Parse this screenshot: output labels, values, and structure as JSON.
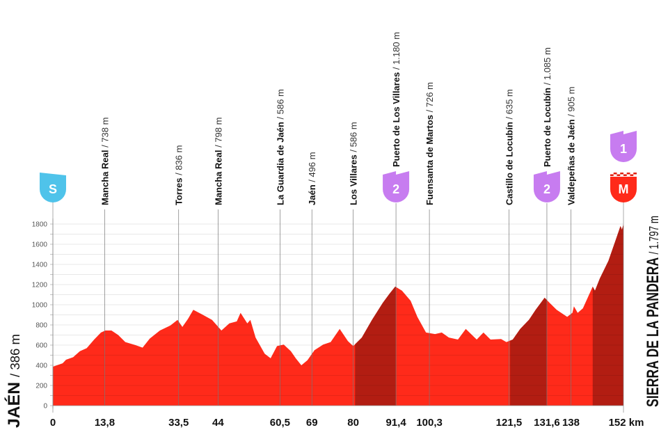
{
  "chart_data": {
    "type": "area",
    "title": "",
    "xlabel": "",
    "ylabel": "",
    "x_unit": "km",
    "xlim": [
      0,
      152
    ],
    "ylim": [
      0,
      1800
    ],
    "y_ticks": [
      0,
      200,
      400,
      600,
      800,
      1000,
      1200,
      1400,
      1600,
      1800
    ],
    "grid": "horizontal every 100 m",
    "colors": {
      "profile": "#ff2a1a",
      "climb": "#b21d12",
      "badge_start": "#4fc3ea",
      "badge_climb": "#c77cf0",
      "badge_finish": "#ff2a1a"
    },
    "profile": [
      [
        0,
        386
      ],
      [
        2.6,
        420
      ],
      [
        3.5,
        455
      ],
      [
        5.4,
        480
      ],
      [
        7.2,
        540
      ],
      [
        9,
        570
      ],
      [
        11,
        655
      ],
      [
        12.8,
        725
      ],
      [
        14,
        745
      ],
      [
        15.6,
        745
      ],
      [
        17.4,
        700
      ],
      [
        19.3,
        630
      ],
      [
        22,
        600
      ],
      [
        23.9,
        575
      ],
      [
        25.8,
        665
      ],
      [
        28.5,
        745
      ],
      [
        31.3,
        795
      ],
      [
        33.2,
        850
      ],
      [
        34.5,
        780
      ],
      [
        36,
        860
      ],
      [
        37.4,
        950
      ],
      [
        39.7,
        905
      ],
      [
        42.4,
        850
      ],
      [
        44.9,
        745
      ],
      [
        47,
        815
      ],
      [
        49,
        835
      ],
      [
        50,
        920
      ],
      [
        51.8,
        815
      ],
      [
        52.6,
        850
      ],
      [
        54,
        675
      ],
      [
        56.4,
        515
      ],
      [
        58,
        470
      ],
      [
        59.7,
        590
      ],
      [
        61.5,
        605
      ],
      [
        63.4,
        540
      ],
      [
        64.7,
        470
      ],
      [
        66.2,
        400
      ],
      [
        67.8,
        450
      ],
      [
        69.7,
        550
      ],
      [
        72,
        605
      ],
      [
        74,
        630
      ],
      [
        76.4,
        760
      ],
      [
        78.6,
        640
      ],
      [
        80,
        590
      ],
      [
        82.3,
        675
      ],
      [
        85,
        850
      ],
      [
        87.9,
        1020
      ],
      [
        89.7,
        1110
      ],
      [
        91.2,
        1180
      ],
      [
        93,
        1140
      ],
      [
        95.3,
        1040
      ],
      [
        97.1,
        880
      ],
      [
        99.4,
        725
      ],
      [
        101.8,
        710
      ],
      [
        103.6,
        725
      ],
      [
        105.5,
        675
      ],
      [
        107.9,
        655
      ],
      [
        110,
        760
      ],
      [
        112.9,
        655
      ],
      [
        114.7,
        725
      ],
      [
        116.6,
        655
      ],
      [
        119.4,
        660
      ],
      [
        120.8,
        630
      ],
      [
        122.5,
        655
      ],
      [
        124.5,
        760
      ],
      [
        126.8,
        850
      ],
      [
        128.6,
        950
      ],
      [
        131,
        1070
      ],
      [
        132.3,
        1020
      ],
      [
        134.2,
        950
      ],
      [
        137,
        880
      ],
      [
        138.4,
        920
      ],
      [
        138.8,
        985
      ],
      [
        139.8,
        920
      ],
      [
        141.2,
        965
      ],
      [
        143.8,
        1180
      ],
      [
        144.4,
        1140
      ],
      [
        145.7,
        1260
      ],
      [
        148,
        1435
      ],
      [
        149.9,
        1640
      ],
      [
        151.2,
        1780
      ],
      [
        151.6,
        1745
      ],
      [
        152,
        1797
      ]
    ],
    "climb_segments": [
      [
        80.5,
        91.4
      ],
      [
        121.8,
        131.6
      ],
      [
        143.8,
        152
      ]
    ],
    "start": {
      "name": "JAÉN",
      "elevation": "/ 386 m"
    },
    "finish": {
      "name": "SIERRA DE LA PANDERA",
      "elevation": "/ 1.797 m"
    },
    "waypoints": [
      {
        "km": 13.8,
        "km_label": "13,8",
        "name": "Mancha Real",
        "elevation": " / 738 m"
      },
      {
        "km": 33.5,
        "km_label": "33,5",
        "name": "Torres",
        "elevation": " / 836 m"
      },
      {
        "km": 44,
        "km_label": "44",
        "name": "Mancha Real",
        "elevation": " / 798 m"
      },
      {
        "km": 60.5,
        "km_label": "60,5",
        "name": "La Guardia de Jaén",
        "elevation": " / 586 m"
      },
      {
        "km": 69,
        "km_label": "69",
        "name": "Jaén",
        "elevation": " / 496 m"
      },
      {
        "km": 80,
        "km_label": "80",
        "name": "Los Villares",
        "elevation": " / 586 m"
      },
      {
        "km": 91.4,
        "km_label": "91,4",
        "name": "Puerto de Los Villares",
        "elevation": " / 1.180 m"
      },
      {
        "km": 100.3,
        "km_label": "100,3",
        "name": "Fuensanta de Martos",
        "elevation": " / 726 m"
      },
      {
        "km": 121.5,
        "km_label": "121,5",
        "name": "Castillo de Locubín",
        "elevation": " / 635 m"
      },
      {
        "km": 131.6,
        "km_label": "131,6",
        "name": "Puerto de Locubín",
        "elevation": " / 1.085 m"
      },
      {
        "km": 138,
        "km_label": "138",
        "name": "Valdepeñas de Jaén",
        "elevation": " / 905 m"
      }
    ],
    "x_tick_labels": [
      {
        "km": 0,
        "label": "0"
      },
      {
        "km": 152,
        "label": "152 km"
      }
    ],
    "badges": [
      {
        "km": 0,
        "text": "S",
        "kind": "start"
      },
      {
        "km": 91.4,
        "text": "2",
        "kind": "climb"
      },
      {
        "km": 131.6,
        "text": "2",
        "kind": "climb"
      },
      {
        "km": 152,
        "text": "1",
        "kind": "climb",
        "row": "upper"
      },
      {
        "km": 152,
        "text": "M",
        "kind": "finish"
      }
    ]
  }
}
